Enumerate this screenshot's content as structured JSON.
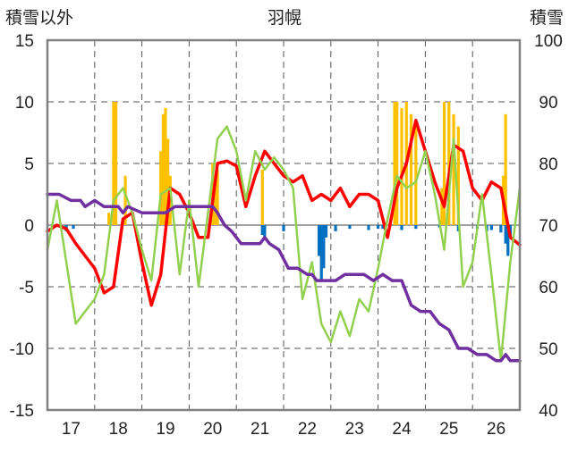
{
  "chart_data": {
    "type": "line",
    "title": "羽幌",
    "left_axis_label": "積雪以外",
    "right_axis_label": "積雪",
    "x_categories": [
      "17",
      "18",
      "19",
      "20",
      "21",
      "22",
      "23",
      "24",
      "25",
      "26"
    ],
    "y_left": {
      "min": -15,
      "max": 15,
      "ticks": [
        15,
        10,
        5,
        0,
        -5,
        -10,
        -15
      ]
    },
    "y_right": {
      "min": 40,
      "max": 100,
      "ticks": [
        100,
        90,
        80,
        70,
        60,
        50,
        40
      ]
    },
    "grid": "dashed",
    "colors": {
      "red": "#ff0000",
      "green": "#92d050",
      "purple": "#7030a0",
      "orange": "#ffc000",
      "blue": "#0070c0",
      "frame": "#808080"
    },
    "series": [
      {
        "color_key": "red",
        "x": [
          16.5,
          16.7,
          16.9,
          17.1,
          17.3,
          17.5,
          17.7,
          17.9,
          18.1,
          18.3,
          18.5,
          18.7,
          18.9,
          19.1,
          19.3,
          19.5,
          19.7,
          19.9,
          20.1,
          20.3,
          20.5,
          20.7,
          20.9,
          21.1,
          21.3,
          21.5,
          21.7,
          21.9,
          22.1,
          22.3,
          22.5,
          22.7,
          22.9,
          23.1,
          23.3,
          23.5,
          23.7,
          23.9,
          24.1,
          24.3,
          24.5,
          24.7,
          24.9,
          25.1,
          25.3,
          25.5,
          25.7,
          25.9,
          26.1,
          26.3,
          26.5
        ],
        "y": [
          -0.5,
          0.0,
          -0.3,
          -1.5,
          -2.5,
          -3.5,
          -5.5,
          -5.0,
          0.5,
          1.0,
          -3.0,
          -6.5,
          -4.0,
          3.0,
          2.5,
          1.0,
          -1.0,
          -1.0,
          5.0,
          5.2,
          4.8,
          1.5,
          4.0,
          6.0,
          5.0,
          4.0,
          3.5,
          4.0,
          2.0,
          2.5,
          2.0,
          3.0,
          1.5,
          2.5,
          2.5,
          2.0,
          -1.0,
          3.0,
          5.0,
          8.5,
          6.0,
          3.5,
          1.5,
          6.5,
          6.0,
          3.0,
          2.0,
          3.5,
          3.0,
          -1.0,
          -1.6
        ]
      },
      {
        "color_key": "green",
        "x": [
          16.5,
          16.7,
          16.9,
          17.1,
          17.3,
          17.5,
          17.7,
          17.9,
          18.1,
          18.3,
          18.5,
          18.7,
          18.9,
          19.1,
          19.3,
          19.5,
          19.7,
          19.9,
          20.1,
          20.3,
          20.5,
          20.7,
          20.9,
          21.1,
          21.3,
          21.5,
          21.7,
          21.9,
          22.1,
          22.3,
          22.5,
          22.7,
          22.9,
          23.1,
          23.3,
          23.5,
          23.7,
          23.9,
          24.1,
          24.3,
          24.5,
          24.7,
          24.9,
          25.1,
          25.3,
          25.5,
          25.7,
          25.9,
          26.1,
          26.3,
          26.5
        ],
        "y": [
          -2.0,
          2.0,
          -3.0,
          -8.0,
          -7.0,
          -6.0,
          -4.0,
          2.0,
          3.0,
          1.0,
          -2.0,
          -4.5,
          2.5,
          3.0,
          -4.0,
          2.0,
          -5.0,
          1.0,
          7.0,
          8.0,
          6.0,
          2.0,
          6.0,
          4.5,
          5.5,
          4.5,
          3.0,
          -6.0,
          -3.0,
          -8.0,
          -9.5,
          -7.0,
          -9.0,
          -6.0,
          -7.0,
          -3.5,
          0.5,
          4.0,
          3.0,
          3.5,
          6.0,
          2.5,
          -2.0,
          7.0,
          -5.0,
          -3.0,
          2.5,
          -4.0,
          -11.0,
          -3.0,
          3.0
        ]
      },
      {
        "color_key": "purple",
        "axis": "right",
        "x": [
          16.5,
          16.75,
          17.0,
          17.2,
          17.3,
          17.5,
          17.7,
          17.8,
          18.0,
          18.1,
          18.2,
          18.5,
          18.8,
          19.0,
          19.2,
          19.4,
          19.6,
          19.8,
          20.0,
          20.1,
          20.25,
          20.4,
          20.6,
          20.8,
          21.0,
          21.1,
          21.2,
          21.4,
          21.6,
          21.8,
          22.0,
          22.1,
          22.2,
          22.4,
          22.6,
          22.8,
          23.0,
          23.2,
          23.4,
          23.6,
          23.8,
          24.0,
          24.2,
          24.4,
          24.6,
          24.8,
          25.0,
          25.2,
          25.4,
          25.6,
          25.8,
          26.0,
          26.1,
          26.2,
          26.3,
          26.5
        ],
        "y": [
          75,
          75,
          74,
          74,
          73,
          74,
          73,
          73,
          73,
          72,
          73,
          72,
          72,
          72,
          73,
          73,
          73,
          73,
          73,
          72,
          70,
          69,
          67,
          67,
          67,
          68,
          67,
          66,
          63,
          63,
          62,
          62,
          61,
          61,
          61,
          62,
          62,
          62,
          61,
          62,
          61,
          61,
          57,
          56,
          56,
          54,
          53,
          50,
          50,
          49,
          49,
          48,
          48,
          49,
          48,
          48
        ]
      }
    ],
    "bars": [
      {
        "color_key": "orange",
        "axis": "right",
        "x": [
          17.8,
          17.9,
          17.95,
          18.15,
          18.9,
          18.95,
          19.0,
          19.05,
          19.1,
          20.0,
          20.05,
          20.1,
          21.05,
          23.85,
          23.9,
          24.0,
          24.1,
          24.2,
          24.3,
          24.85,
          24.9,
          25.0,
          25.1,
          25.2,
          26.15,
          26.2
        ],
        "y": [
          72,
          90,
          90,
          78,
          82,
          88,
          89,
          84,
          78,
          80,
          76,
          79,
          79,
          90,
          90,
          89,
          90,
          88,
          86,
          76,
          90,
          90,
          88,
          86,
          78,
          88
        ]
      },
      {
        "color_key": "blue",
        "axis": "left",
        "x": [
          16.9,
          17.05,
          21.05,
          21.1,
          21.5,
          22.25,
          22.3,
          22.35,
          22.4,
          22.6,
          22.9,
          23.3,
          23.5,
          23.6,
          24.0,
          24.3,
          24.8,
          25.2,
          25.6,
          25.8,
          25.9,
          26.1,
          26.2,
          26.25,
          26.3
        ],
        "y": [
          -0.5,
          -0.3,
          -0.8,
          -1.0,
          -0.5,
          -2.5,
          -4.5,
          -3.5,
          -1.0,
          -0.5,
          -0.3,
          -0.4,
          -0.3,
          -0.3,
          -0.4,
          -0.3,
          -0.2,
          -0.5,
          -0.3,
          -0.5,
          -0.4,
          -0.6,
          -1.5,
          -2.5,
          -1.0
        ]
      }
    ]
  }
}
